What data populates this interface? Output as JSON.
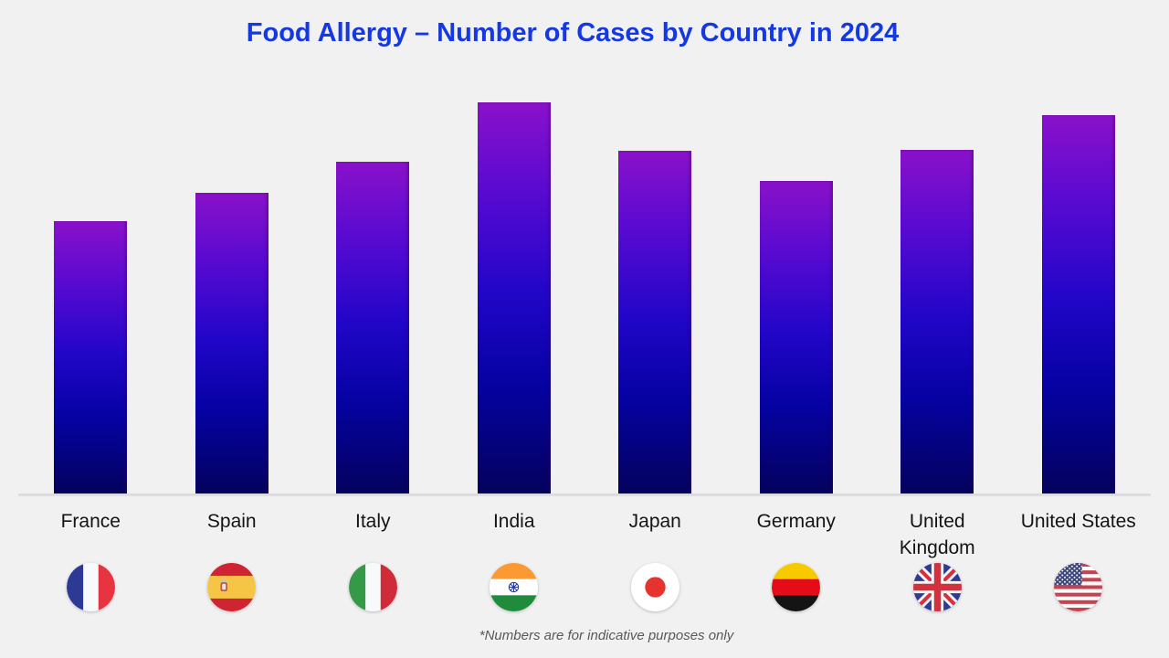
{
  "page": {
    "background_color": "#f1f1f2",
    "title_color": "#1438e2"
  },
  "chart": {
    "title": "Food Allergy – Number of Cases by Country in 2024",
    "footnote": "*Numbers are for indicative purposes only"
  },
  "chart_data": {
    "type": "bar",
    "title": "Food Allergy – Number of Cases by Country in 2024",
    "categories": [
      "France",
      "Spain",
      "Italy",
      "India",
      "Japan",
      "Germany",
      "United Kingdom",
      "United States"
    ],
    "values_relative_pct": [
      69.7,
      76.9,
      84.8,
      100,
      87.6,
      80.0,
      87.9,
      96.7
    ],
    "value_labels_shown": false,
    "y_axis_shown": false,
    "x_axis_line_shown": true,
    "gridlines": false,
    "legend": "none",
    "bar_gradient": [
      "#8a11ca",
      "#2206c9",
      "#04025c"
    ],
    "note": "*Numbers are for indicative purposes only"
  },
  "labels_display": [
    "France",
    "Spain",
    "Italy",
    "India",
    "Japan",
    "Germany",
    "United\nKingdom",
    "United States"
  ],
  "flags": [
    {
      "country": "France",
      "icon": "flag-france-icon"
    },
    {
      "country": "Spain",
      "icon": "flag-spain-icon"
    },
    {
      "country": "Italy",
      "icon": "flag-italy-icon"
    },
    {
      "country": "India",
      "icon": "flag-india-icon"
    },
    {
      "country": "Japan",
      "icon": "flag-japan-icon"
    },
    {
      "country": "Germany",
      "icon": "flag-germany-icon"
    },
    {
      "country": "United Kingdom",
      "icon": "flag-uk-icon"
    },
    {
      "country": "United States",
      "icon": "flag-us-icon"
    }
  ]
}
